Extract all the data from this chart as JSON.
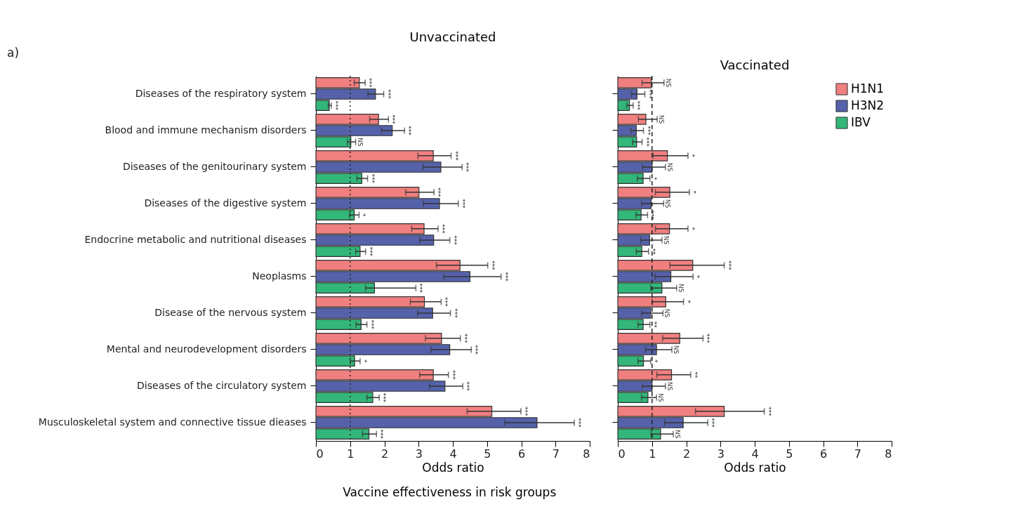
{
  "chart_data": [
    {
      "type": "bar",
      "orientation": "horizontal",
      "title": "Unvaccinated",
      "xlabel": "Odds ratio",
      "categories": [
        "Diseases of the respiratory system",
        "Blood and immune mechanism disorders",
        "Diseases of the genitourinary system",
        "Diseases of the digestive system",
        "Endocrine metabolic and nutritional diseases",
        "Neoplasms",
        "Disease of the nervous system",
        "Mental and neurodevelopment disorders",
        "Diseases of the circulatory system",
        "Musculoskeletal system and connective tissue dieases"
      ],
      "series": [
        {
          "color": "#f07f7f",
          "values": [
            1.27,
            1.83,
            3.43,
            3.01,
            3.16,
            4.21,
            3.17,
            3.67,
            3.43,
            5.14
          ],
          "errors": [
            [
              1.12,
              1.44
            ],
            [
              1.57,
              2.12
            ],
            [
              2.98,
              3.95
            ],
            [
              2.62,
              3.45
            ],
            [
              2.8,
              3.57
            ],
            [
              3.52,
              5.02
            ],
            [
              2.76,
              3.66
            ],
            [
              3.2,
              4.22
            ],
            [
              3.03,
              3.87
            ],
            [
              4.42,
              5.99
            ]
          ]
        },
        {
          "color": "#5562aa",
          "values": [
            1.74,
            2.23,
            3.65,
            3.61,
            3.44,
            4.5,
            3.41,
            3.91,
            3.77,
            6.46
          ],
          "errors": [
            [
              1.52,
              1.98
            ],
            [
              1.92,
              2.59
            ],
            [
              3.13,
              4.27
            ],
            [
              3.14,
              4.16
            ],
            [
              3.03,
              3.91
            ],
            [
              3.74,
              5.41
            ],
            [
              2.97,
              3.93
            ],
            [
              3.36,
              4.54
            ],
            [
              3.32,
              4.29
            ],
            [
              5.52,
              7.55
            ]
          ]
        },
        {
          "color": "#33b679",
          "values": [
            0.39,
            1.02,
            1.34,
            1.12,
            1.29,
            1.71,
            1.32,
            1.13,
            1.66,
            1.55
          ],
          "errors": [
            [
              0.36,
              0.45
            ],
            [
              0.92,
              1.16
            ],
            [
              1.2,
              1.51
            ],
            [
              0.98,
              1.26
            ],
            [
              1.16,
              1.45
            ],
            [
              1.45,
              2.92
            ],
            [
              1.17,
              1.49
            ],
            [
              1.0,
              1.29
            ],
            [
              1.49,
              1.85
            ],
            [
              1.36,
              1.77
            ]
          ]
        }
      ],
      "annotations": [
        "***",
        "***",
        "***",
        "***",
        "***",
        "NS",
        "***",
        "***",
        "***",
        "***",
        "***",
        "*",
        "***",
        "***",
        "***",
        "***",
        "***",
        "***",
        "***",
        "***",
        "***",
        "***",
        "***",
        "*",
        "***",
        "***",
        "***",
        "***",
        "***",
        "***",
        "a)",
        "Vaccine effectiveness in risk groups"
      ],
      "xlim": [
        0,
        8
      ],
      "xticks": [
        0,
        1,
        2,
        3,
        4,
        5,
        6,
        7,
        8
      ],
      "grid": false,
      "ref_lines": [
        {
          "axis": "x",
          "value": 1,
          "line_style": "dotted"
        }
      ]
    },
    {
      "type": "bar",
      "orientation": "horizontal",
      "title": "Vaccinated",
      "xlabel": "Odds ratio",
      "categories": [
        null,
        null,
        null,
        null,
        null,
        null,
        null,
        null,
        null,
        null
      ],
      "series": [
        {
          "name": "H1N1",
          "color": "#f07f7f",
          "values": [
            0.98,
            0.82,
            1.45,
            1.52,
            1.51,
            2.19,
            1.4,
            1.81,
            1.57,
            3.11
          ],
          "errors": [
            [
              0.71,
              1.35
            ],
            [
              0.6,
              1.15
            ],
            [
              1.03,
              2.05
            ],
            [
              1.1,
              2.09
            ],
            [
              1.1,
              2.05
            ],
            [
              1.52,
              3.11
            ],
            [
              1.0,
              1.92
            ],
            [
              1.31,
              2.49
            ],
            [
              1.14,
              2.13
            ],
            [
              2.27,
              4.28
            ]
          ]
        },
        {
          "name": "H3N2",
          "color": "#5562aa",
          "values": [
            0.56,
            0.54,
            1.0,
            0.97,
            0.93,
            1.55,
            0.96,
            1.13,
            1.0,
            1.91
          ],
          "errors": [
            [
              0.4,
              0.79
            ],
            [
              0.38,
              0.75
            ],
            [
              0.72,
              1.39
            ],
            [
              0.7,
              1.34
            ],
            [
              0.67,
              1.29
            ],
            [
              1.09,
              2.2
            ],
            [
              0.7,
              1.32
            ],
            [
              0.81,
              1.58
            ],
            [
              0.72,
              1.39
            ],
            [
              1.37,
              2.63
            ]
          ]
        },
        {
          "name": "IBV",
          "color": "#33b679",
          "values": [
            0.34,
            0.55,
            0.74,
            0.68,
            0.7,
            1.29,
            0.74,
            0.75,
            0.88,
            1.25
          ],
          "errors": [
            [
              0.26,
              0.45
            ],
            [
              0.43,
              0.71
            ],
            [
              0.57,
              0.94
            ],
            [
              0.53,
              0.87
            ],
            [
              0.54,
              0.9
            ],
            [
              0.96,
              1.72
            ],
            [
              0.59,
              0.94
            ],
            [
              0.59,
              0.96
            ],
            [
              0.69,
              1.13
            ],
            [
              0.97,
              1.62
            ]
          ]
        }
      ],
      "annotations": [
        "NS",
        "***",
        "***",
        "NS",
        "***",
        "***",
        "*",
        "NS",
        "*",
        "*",
        "NS",
        "***",
        "*",
        "NS",
        "**",
        "***",
        "*",
        "NS",
        "*",
        "NS",
        "**",
        "***",
        "NS",
        "*",
        "**",
        "NS",
        "NS",
        "***",
        "***",
        "NS"
      ],
      "xlim": [
        0,
        8
      ],
      "xticks": [
        0,
        1,
        2,
        3,
        4,
        5,
        6,
        7,
        8
      ],
      "grid": false,
      "legend": "top right",
      "tick_labels": "x",
      "ref_lines": [
        {
          "axis": "x",
          "value": 1,
          "line_style": "dashed"
        }
      ]
    }
  ]
}
